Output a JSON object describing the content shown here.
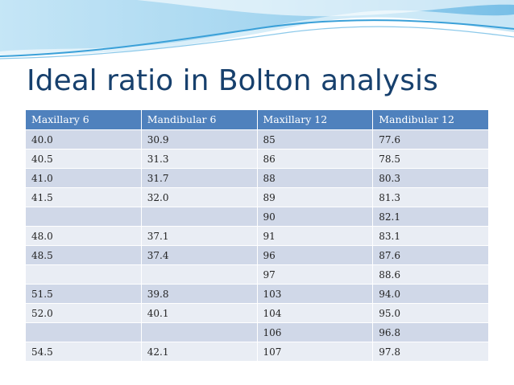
{
  "slide": {
    "title": "Ideal ratio in Bolton analysis"
  },
  "colors": {
    "title": "#17406d",
    "header_bg": "#4f81bd",
    "row_odd": "#d0d8e8",
    "row_even": "#e9edf4",
    "wave_blue": "#3aa0d8"
  },
  "table": {
    "headers": [
      "Maxillary 6",
      "Mandibular 6",
      "Maxillary 12",
      "Mandibular 12"
    ],
    "rows": [
      [
        "40.0",
        "30.9",
        "85",
        "77.6"
      ],
      [
        "40.5",
        "31.3",
        "86",
        "78.5"
      ],
      [
        "41.0",
        "31.7",
        "88",
        "80.3"
      ],
      [
        "41.5",
        "32.0",
        "89",
        "81.3"
      ],
      [
        "",
        "",
        "90",
        "82.1"
      ],
      [
        "48.0",
        "37.1",
        "91",
        "83.1"
      ],
      [
        "48.5",
        "37.4",
        "96",
        "87.6"
      ],
      [
        "",
        "",
        "97",
        "88.6"
      ],
      [
        "51.5",
        "39.8",
        "103",
        "94.0"
      ],
      [
        "52.0",
        "40.1",
        "104",
        "95.0"
      ],
      [
        "",
        "",
        "106",
        "96.8"
      ],
      [
        "54.5",
        "42.1",
        "107",
        "97.8"
      ]
    ]
  }
}
